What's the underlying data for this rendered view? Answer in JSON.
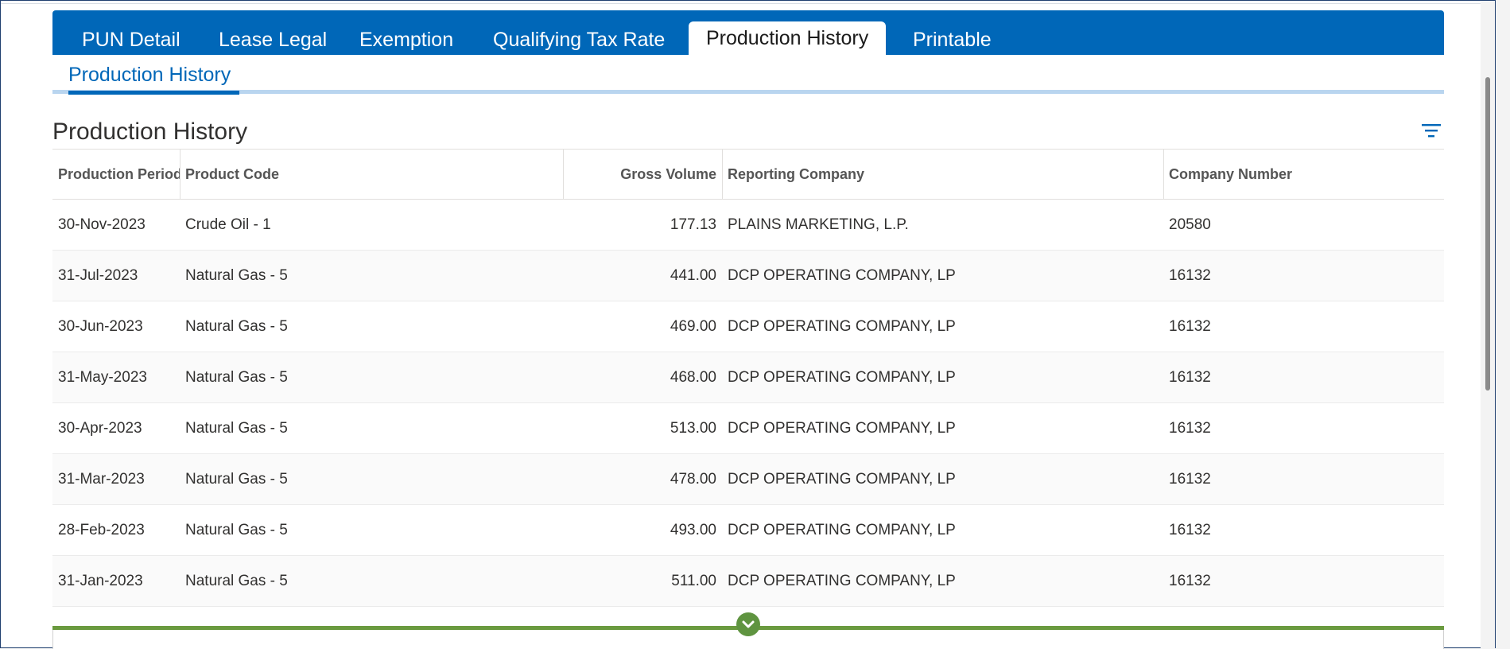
{
  "tabs": [
    {
      "label": "PUN Detail",
      "active": false
    },
    {
      "label": "Lease Legal",
      "active": false
    },
    {
      "label": "Exemption",
      "active": false
    },
    {
      "label": "Qualifying Tax Rate",
      "active": false
    },
    {
      "label": "Production History",
      "active": true
    },
    {
      "label": "Printable",
      "active": false
    }
  ],
  "subtab": {
    "label": "Production History"
  },
  "section": {
    "title": "Production History",
    "filter_icon": "filter-icon"
  },
  "table": {
    "columns": [
      "Production Period",
      "Product Code",
      "Gross Volume",
      "Reporting Company",
      "Company Number"
    ],
    "rows": [
      [
        "30-Nov-2023",
        "Crude Oil - 1",
        "177.13",
        "PLAINS MARKETING, L.P.",
        "20580"
      ],
      [
        "31-Jul-2023",
        "Natural Gas - 5",
        "441.00",
        "DCP OPERATING COMPANY, LP",
        "16132"
      ],
      [
        "30-Jun-2023",
        "Natural Gas - 5",
        "469.00",
        "DCP OPERATING COMPANY, LP",
        "16132"
      ],
      [
        "31-May-2023",
        "Natural Gas - 5",
        "468.00",
        "DCP OPERATING COMPANY, LP",
        "16132"
      ],
      [
        "30-Apr-2023",
        "Natural Gas - 5",
        "513.00",
        "DCP OPERATING COMPANY, LP",
        "16132"
      ],
      [
        "31-Mar-2023",
        "Natural Gas - 5",
        "478.00",
        "DCP OPERATING COMPANY, LP",
        "16132"
      ],
      [
        "28-Feb-2023",
        "Natural Gas - 5",
        "493.00",
        "DCP OPERATING COMPANY, LP",
        "16132"
      ],
      [
        "31-Jan-2023",
        "Natural Gas - 5",
        "511.00",
        "DCP OPERATING COMPANY, LP",
        "16132"
      ]
    ]
  },
  "colors": {
    "brand_blue": "#0067b8",
    "expander_green": "#5f9440"
  },
  "expander": {
    "icon": "chevron-down-icon"
  }
}
